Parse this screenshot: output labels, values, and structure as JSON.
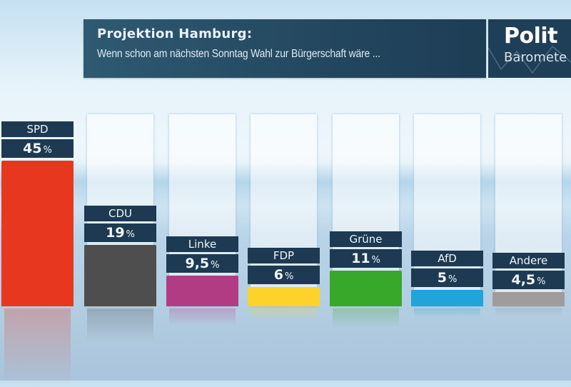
{
  "header": {
    "title": "Projektion Hamburg:",
    "subtitle": "Wenn schon am nächsten Sonntag Wahl zur Bürgerschaft wäre ..."
  },
  "logo": {
    "line1": "Polit",
    "line2": "Baromete"
  },
  "chart_data": {
    "type": "bar",
    "title": "Projektion Hamburg:",
    "subtitle": "Wenn schon am nächsten Sonntag Wahl zur Bürgerschaft wäre ...",
    "xlabel": "",
    "ylabel": "",
    "unit": "%",
    "categories": [
      "SPD",
      "CDU",
      "Linke",
      "FDP",
      "Grüne",
      "AfD",
      "Andere"
    ],
    "values": [
      45,
      19,
      9.5,
      6,
      11,
      5,
      4.5
    ],
    "value_labels": [
      "45",
      "19",
      "9,5",
      "6",
      "11",
      "5",
      "4,5"
    ],
    "colors": [
      "#e8371f",
      "#4e4e4e",
      "#b23c84",
      "#fdd22a",
      "#38a82b",
      "#21a4d9",
      "#a09c9b"
    ],
    "ylim": [
      0,
      50
    ],
    "grid": false,
    "legend": "none"
  }
}
